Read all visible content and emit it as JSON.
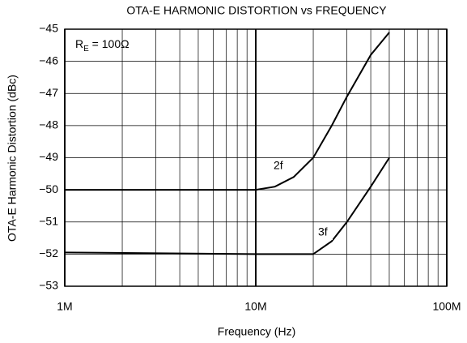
{
  "chart_data": {
    "type": "line",
    "title": "OTA-E HARMONIC DISTORTION vs FREQUENCY",
    "x_label": "Frequency (Hz)",
    "y_label": "OTA-E Harmonic Distortion (dBc)",
    "annotation": {
      "main": "R",
      "sub": "E",
      "rest": " = 100Ω"
    },
    "xscale": "log",
    "x": [
      1000000,
      10000000,
      12600000,
      15800000,
      20000000,
      25000000,
      30000000,
      40000000,
      50000000
    ],
    "series": [
      {
        "name": "2f",
        "color": "#000000",
        "values": [
          -50,
          -50,
          -49.9,
          -49.6,
          -49.0,
          -48.0,
          -47.1,
          -45.8,
          -45.1
        ]
      },
      {
        "name": "3f",
        "color": "#000000",
        "values": [
          -51.95,
          -52.0,
          -52.0,
          -52.0,
          -52.0,
          -51.6,
          -51.0,
          -49.9,
          -49.0
        ]
      }
    ],
    "xlim": [
      1000000,
      100000000
    ],
    "xticks": [
      {
        "value": 1000000,
        "label": "1M"
      },
      {
        "value": 10000000,
        "label": "10M"
      },
      {
        "value": 100000000,
        "label": "100M"
      }
    ],
    "ylim": [
      -53,
      -45
    ],
    "yticks": [
      {
        "value": -53,
        "label": "−53"
      },
      {
        "value": -52,
        "label": "−52"
      },
      {
        "value": -51,
        "label": "−51"
      },
      {
        "value": -50,
        "label": "−50"
      },
      {
        "value": -49,
        "label": "−49"
      },
      {
        "value": -48,
        "label": "−48"
      },
      {
        "value": -47,
        "label": "−47"
      },
      {
        "value": -46,
        "label": "−46"
      },
      {
        "value": -45,
        "label": "−45"
      }
    ],
    "grid": true,
    "minor_grid": true
  }
}
